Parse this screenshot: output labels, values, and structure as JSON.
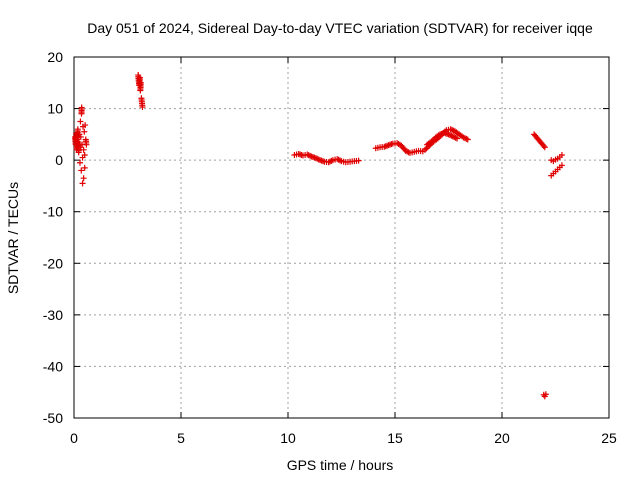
{
  "chart_data": {
    "type": "scatter",
    "title": "Day 051 of 2024, Sidereal Day-to-day VTEC variation (SDTVAR) for receiver iqqe",
    "xlabel": "GPS time / hours",
    "ylabel": "SDTVAR / TECUs",
    "xlim": [
      0,
      25
    ],
    "ylim": [
      -50,
      20
    ],
    "xticks": [
      0,
      5,
      10,
      15,
      20,
      25
    ],
    "yticks": [
      20,
      10,
      0,
      -10,
      -20,
      -30,
      -40,
      -50
    ],
    "xtick_labels": [
      "0",
      "5",
      "10",
      "15",
      "20",
      "25"
    ],
    "ytick_labels": [
      "20",
      "10",
      "0",
      "-10",
      "-20",
      "-30",
      "-40",
      "-50"
    ],
    "grid": true,
    "marker": "+",
    "series": [
      {
        "name": "SDTVAR",
        "color": "#e00000",
        "segments": [
          [
            [
              0.05,
              4.5
            ],
            [
              0.08,
              3.0
            ],
            [
              0.1,
              5.2
            ],
            [
              0.12,
              2.0
            ],
            [
              0.15,
              4.0
            ],
            [
              0.18,
              6.0
            ],
            [
              0.2,
              3.5
            ],
            [
              0.22,
              1.5
            ],
            [
              0.25,
              5.0
            ],
            [
              0.28,
              -0.5
            ],
            [
              0.3,
              2.5
            ],
            [
              0.3,
              7.5
            ],
            [
              0.32,
              4.5
            ],
            [
              0.34,
              -2.0
            ],
            [
              0.35,
              9.0
            ],
            [
              0.36,
              10.2
            ],
            [
              0.38,
              3.0
            ],
            [
              0.4,
              -4.5
            ],
            [
              0.4,
              0.5
            ],
            [
              0.42,
              6.5
            ],
            [
              0.45,
              -3.5
            ],
            [
              0.45,
              2.0
            ],
            [
              0.48,
              5.5
            ],
            [
              0.5,
              -1.5
            ],
            [
              0.5,
              1.0
            ],
            [
              0.52,
              6.8
            ],
            [
              0.55,
              4.0
            ],
            [
              0.58,
              3.0
            ]
          ],
          [
            [
              3.0,
              16.5
            ],
            [
              3.02,
              15.5
            ],
            [
              3.05,
              14.5
            ],
            [
              3.08,
              16.0
            ],
            [
              3.1,
              13.5
            ],
            [
              3.12,
              15.0
            ],
            [
              3.15,
              12.0
            ],
            [
              3.18,
              11.0
            ],
            [
              3.2,
              10.3
            ]
          ],
          [
            [
              10.3,
              1.0
            ],
            [
              10.5,
              1.2
            ],
            [
              10.7,
              0.9
            ],
            [
              10.9,
              1.1
            ],
            [
              11.1,
              0.7
            ],
            [
              11.3,
              0.4
            ],
            [
              11.5,
              0.0
            ],
            [
              11.7,
              -0.3
            ],
            [
              11.9,
              -0.4
            ],
            [
              12.1,
              0.0
            ],
            [
              12.3,
              0.2
            ],
            [
              12.5,
              -0.2
            ],
            [
              12.7,
              -0.4
            ],
            [
              12.9,
              -0.3
            ],
            [
              13.1,
              -0.2
            ],
            [
              13.3,
              -0.1
            ]
          ],
          [
            [
              14.1,
              2.3
            ],
            [
              14.3,
              2.5
            ],
            [
              14.5,
              2.6
            ],
            [
              14.7,
              2.9
            ],
            [
              14.9,
              3.2
            ],
            [
              15.1,
              3.3
            ],
            [
              15.3,
              2.8
            ],
            [
              15.5,
              1.8
            ],
            [
              15.7,
              1.4
            ],
            [
              15.9,
              1.6
            ],
            [
              16.1,
              1.8
            ],
            [
              16.3,
              1.7
            ]
          ],
          [
            [
              16.4,
              2.0
            ],
            [
              16.6,
              2.8
            ],
            [
              16.8,
              3.6
            ],
            [
              17.0,
              4.2
            ],
            [
              17.2,
              5.0
            ],
            [
              17.4,
              5.8
            ],
            [
              17.6,
              6.0
            ],
            [
              17.8,
              5.6
            ],
            [
              18.0,
              5.0
            ],
            [
              18.2,
              4.4
            ],
            [
              18.4,
              4.0
            ]
          ],
          [
            [
              16.5,
              3.0
            ],
            [
              16.7,
              3.6
            ],
            [
              16.9,
              4.4
            ],
            [
              17.1,
              5.0
            ],
            [
              17.3,
              5.3
            ],
            [
              17.5,
              5.0
            ],
            [
              17.7,
              4.6
            ],
            [
              17.9,
              4.2
            ]
          ],
          [
            [
              21.5,
              5.0
            ],
            [
              21.6,
              4.5
            ],
            [
              21.7,
              4.0
            ],
            [
              21.8,
              3.5
            ],
            [
              21.9,
              3.0
            ],
            [
              22.0,
              2.5
            ]
          ],
          [
            [
              22.3,
              0.0
            ],
            [
              22.4,
              -0.2
            ],
            [
              22.5,
              0.1
            ],
            [
              22.6,
              0.3
            ],
            [
              22.7,
              0.6
            ],
            [
              22.8,
              1.0
            ]
          ],
          [
            [
              22.3,
              -3.0
            ],
            [
              22.4,
              -2.6
            ],
            [
              22.5,
              -2.2
            ],
            [
              22.6,
              -1.8
            ],
            [
              22.7,
              -1.4
            ],
            [
              22.8,
              -1.0
            ]
          ],
          [
            [
              21.95,
              -45.5
            ],
            [
              22.0,
              -45.8
            ],
            [
              22.05,
              -45.4
            ]
          ]
        ]
      }
    ]
  }
}
